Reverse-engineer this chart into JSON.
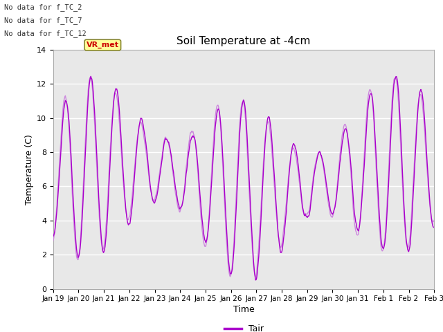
{
  "title": "Soil Temperature at -4cm",
  "xlabel": "Time",
  "ylabel": "Temperature (C)",
  "ylim": [
    0,
    14
  ],
  "yticks": [
    0,
    2,
    4,
    6,
    8,
    10,
    12,
    14
  ],
  "line_color": "#aa00cc",
  "line_color2": "#cc88dd",
  "legend_label": "Tair",
  "annotations": [
    "No data for f_TC_2",
    "No data for f_TC_7",
    "No data for f_TC_12"
  ],
  "legend_box_color": "#ffff99",
  "legend_box_text": "VR_met",
  "legend_box_text_color": "#cc0000",
  "xtick_labels": [
    "Jan 19",
    "Jan 20",
    "Jan 21",
    "Jan 22",
    "Jan 23",
    "Jan 24",
    "Jan 25",
    "Jan 26",
    "Jan 27",
    "Jan 28",
    "Jan 29",
    "Jan 30",
    "Jan 31",
    "Feb 1",
    "Feb 2",
    "Feb 3"
  ],
  "bg_color": "#e8e8e8",
  "grid_color": "#ffffff"
}
